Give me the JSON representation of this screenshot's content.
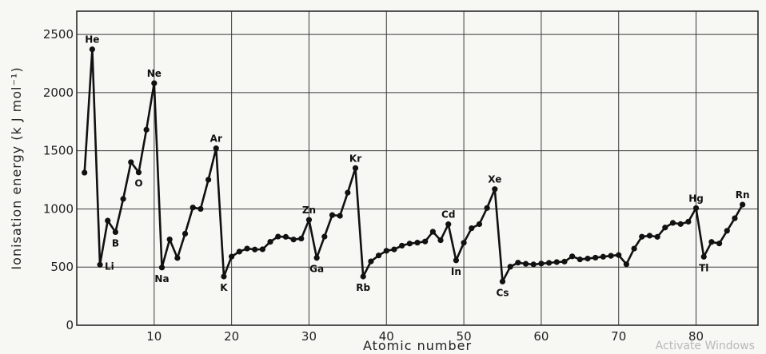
{
  "watermark": "Activate Windows",
  "chart_data": {
    "type": "line",
    "xlabel": "Atomic number",
    "ylabel": "Ionisation energy (k J mol⁻¹)",
    "xlim": [
      0,
      88
    ],
    "ylim": [
      0,
      2700
    ],
    "x_ticks": [
      10,
      20,
      30,
      40,
      50,
      60,
      70,
      80
    ],
    "y_ticks": [
      0,
      500,
      1000,
      1500,
      2000,
      2500
    ],
    "grid": true,
    "series": [
      {
        "x": [
          1,
          2,
          3,
          4,
          5,
          6,
          7,
          8,
          9,
          10,
          11,
          12,
          13,
          14,
          15,
          16,
          17,
          18,
          19,
          20,
          21,
          22,
          23,
          24,
          25,
          26,
          27,
          28,
          29,
          30,
          31,
          32,
          33,
          34,
          35,
          36,
          37,
          38,
          39,
          40,
          41,
          42,
          43,
          44,
          45,
          46,
          47,
          48,
          49,
          50,
          51,
          52,
          53,
          54,
          55,
          56,
          57,
          58,
          59,
          60,
          61,
          62,
          63,
          64,
          65,
          66,
          67,
          68,
          69,
          70,
          71,
          72,
          73,
          74,
          75,
          76,
          77,
          78,
          79,
          80,
          81,
          82,
          83,
          84,
          85,
          86
        ],
        "y": [
          1312,
          2372,
          520,
          899,
          801,
          1086,
          1402,
          1314,
          1681,
          2081,
          496,
          738,
          578,
          787,
          1012,
          1000,
          1251,
          1521,
          419,
          590,
          633,
          659,
          651,
          653,
          717,
          762,
          760,
          737,
          745,
          906,
          579,
          762,
          947,
          941,
          1140,
          1351,
          419,
          549,
          600,
          640,
          652,
          684,
          702,
          710,
          720,
          804,
          731,
          868,
          558,
          709,
          834,
          869,
          1008,
          1170,
          376,
          503,
          538,
          528,
          523,
          530,
          536,
          543,
          547,
          592,
          566,
          573,
          581,
          589,
          597,
          603,
          524,
          659,
          761,
          770,
          760,
          840,
          880,
          870,
          890,
          1007,
          589,
          716,
          703,
          812,
          920,
          1037
        ]
      }
    ],
    "annotations": [
      {
        "text": "He",
        "x": 2,
        "y": 2372,
        "pos": "above"
      },
      {
        "text": "Li",
        "x": 3,
        "y": 520,
        "pos": "right"
      },
      {
        "text": "B",
        "x": 5,
        "y": 801,
        "pos": "below"
      },
      {
        "text": "O",
        "x": 8,
        "y": 1314,
        "pos": "below"
      },
      {
        "text": "Ne",
        "x": 10,
        "y": 2081,
        "pos": "above"
      },
      {
        "text": "Na",
        "x": 11,
        "y": 496,
        "pos": "below"
      },
      {
        "text": "Ar",
        "x": 18,
        "y": 1521,
        "pos": "above"
      },
      {
        "text": "K",
        "x": 19,
        "y": 419,
        "pos": "below"
      },
      {
        "text": "Zn",
        "x": 30,
        "y": 906,
        "pos": "above"
      },
      {
        "text": "Ga",
        "x": 31,
        "y": 579,
        "pos": "below"
      },
      {
        "text": "Kr",
        "x": 36,
        "y": 1351,
        "pos": "above"
      },
      {
        "text": "Rb",
        "x": 37,
        "y": 419,
        "pos": "below"
      },
      {
        "text": "Cd",
        "x": 48,
        "y": 868,
        "pos": "above"
      },
      {
        "text": "In",
        "x": 49,
        "y": 558,
        "pos": "below"
      },
      {
        "text": "Xe",
        "x": 54,
        "y": 1170,
        "pos": "above"
      },
      {
        "text": "Cs",
        "x": 55,
        "y": 376,
        "pos": "below"
      },
      {
        "text": "Hg",
        "x": 80,
        "y": 1007,
        "pos": "above"
      },
      {
        "text": "Tl",
        "x": 81,
        "y": 589,
        "pos": "below"
      },
      {
        "text": "Rn",
        "x": 86,
        "y": 1037,
        "pos": "above"
      }
    ]
  }
}
